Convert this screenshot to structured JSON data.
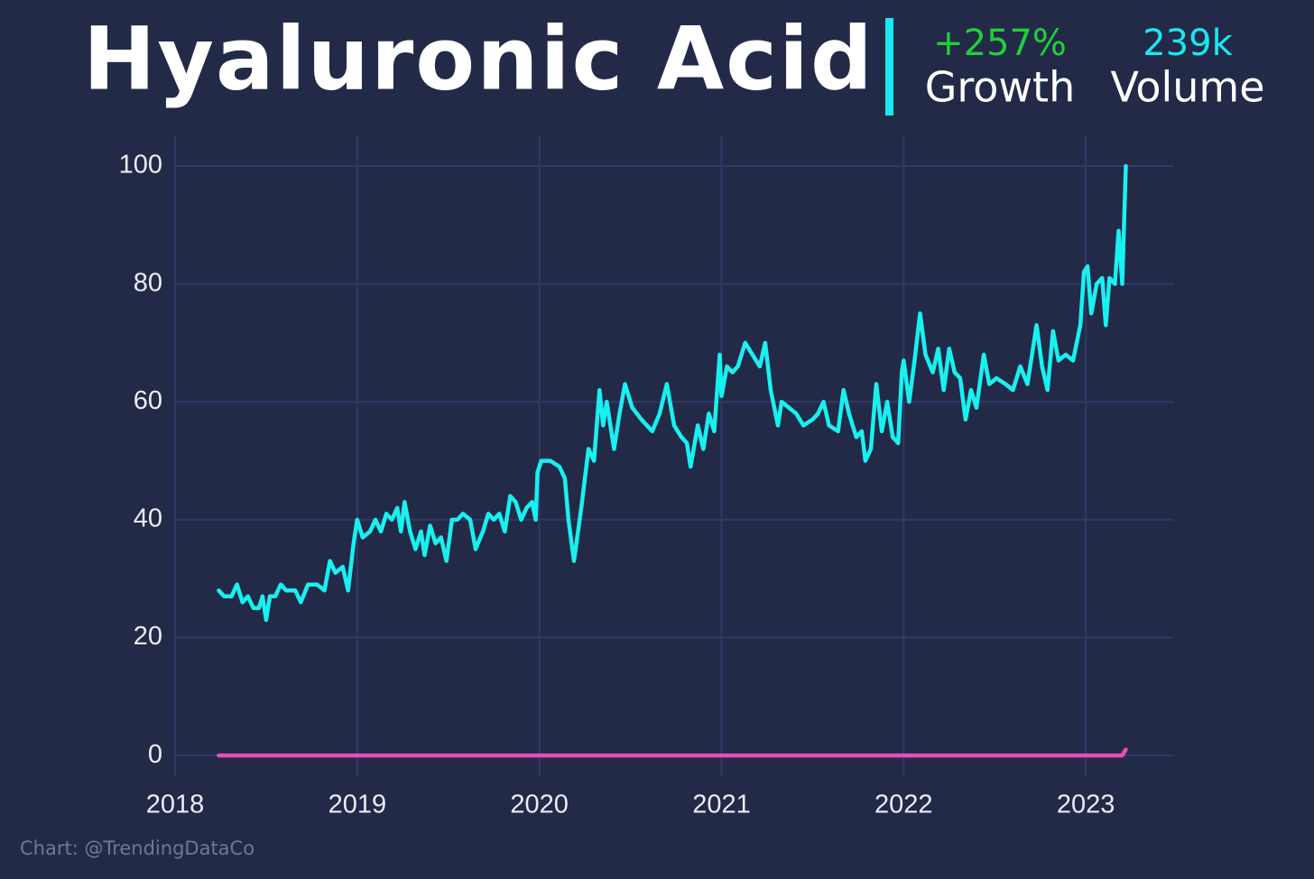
{
  "chart_data": {
    "type": "line",
    "title": "Hyaluronic Acid",
    "stats": [
      {
        "value": "+257%",
        "label": "Growth",
        "color": "#1fcf3a"
      },
      {
        "value": "239k",
        "label": "Volume",
        "color": "#19e8f0"
      }
    ],
    "source": "Chart: @TrendingDataCo",
    "xlim": [
      2017.995,
      2023.48
    ],
    "xticks": [
      2018,
      2019,
      2020,
      2021,
      2022,
      2023
    ],
    "ylim": [
      -3.5,
      105.2
    ],
    "yticks": [
      0,
      20,
      40,
      60,
      80,
      100
    ],
    "grid": true,
    "series": [
      {
        "color": "#19f0f0",
        "x": [
          2018.24,
          2018.27,
          2018.31,
          2018.34,
          2018.37,
          2018.4,
          2018.43,
          2018.46,
          2018.48,
          2018.5,
          2018.52,
          2018.55,
          2018.58,
          2018.61,
          2018.66,
          2018.69,
          2018.73,
          2018.78,
          2018.82,
          2018.85,
          2018.88,
          2018.92,
          2018.95,
          2018.98,
          2019.0,
          2019.03,
          2019.07,
          2019.1,
          2019.13,
          2019.16,
          2019.19,
          2019.22,
          2019.24,
          2019.26,
          2019.29,
          2019.32,
          2019.35,
          2019.37,
          2019.4,
          2019.43,
          2019.46,
          2019.49,
          2019.52,
          2019.55,
          2019.58,
          2019.62,
          2019.65,
          2019.69,
          2019.72,
          2019.75,
          2019.78,
          2019.81,
          2019.84,
          2019.87,
          2019.9,
          2019.93,
          2019.96,
          2019.98,
          2019.99,
          2020.01,
          2020.06,
          2020.11,
          2020.14,
          2020.16,
          2020.19,
          2020.23,
          2020.27,
          2020.3,
          2020.33,
          2020.35,
          2020.37,
          2020.41,
          2020.44,
          2020.47,
          2020.51,
          2020.56,
          2020.62,
          2020.66,
          2020.7,
          2020.74,
          2020.78,
          2020.81,
          2020.83,
          2020.87,
          2020.9,
          2020.93,
          2020.96,
          2020.99,
          2021.0,
          2021.03,
          2021.06,
          2021.09,
          2021.13,
          2021.17,
          2021.21,
          2021.24,
          2021.27,
          2021.31,
          2021.33,
          2021.37,
          2021.41,
          2021.45,
          2021.5,
          2021.53,
          2021.56,
          2021.59,
          2021.64,
          2021.67,
          2021.7,
          2021.74,
          2021.77,
          2021.79,
          2021.82,
          2021.85,
          2021.88,
          2021.91,
          2021.94,
          2021.97,
          2021.99,
          2022.0,
          2022.03,
          2022.06,
          2022.09,
          2022.12,
          2022.16,
          2022.19,
          2022.22,
          2022.25,
          2022.28,
          2022.31,
          2022.34,
          2022.37,
          2022.4,
          2022.44,
          2022.47,
          2022.51,
          2022.56,
          2022.6,
          2022.64,
          2022.68,
          2022.73,
          2022.76,
          2022.79,
          2022.82,
          2022.85,
          2022.89,
          2022.93,
          2022.97,
          2022.99,
          2023.01,
          2023.03,
          2023.06,
          2023.09,
          2023.11,
          2023.13,
          2023.16,
          2023.18,
          2023.2,
          2023.22
        ],
        "values": [
          28,
          27,
          27,
          29,
          26,
          27,
          25,
          25,
          27,
          23,
          27,
          27,
          29,
          28,
          28,
          26,
          29,
          29,
          28,
          33,
          31,
          32,
          28,
          36,
          40,
          37,
          38,
          40,
          38,
          41,
          40,
          42,
          38,
          43,
          38,
          35,
          38,
          34,
          39,
          36,
          37,
          33,
          40,
          40,
          41,
          40,
          35,
          38,
          41,
          40,
          41,
          38,
          44,
          43,
          40,
          42,
          43,
          40,
          48,
          50,
          50,
          49,
          47,
          40,
          33,
          42,
          52,
          50,
          62,
          56,
          60,
          52,
          58,
          63,
          59,
          57,
          55,
          58,
          63,
          56,
          54,
          53,
          49,
          56,
          52,
          58,
          55,
          68,
          61,
          66,
          65,
          66,
          70,
          68,
          66,
          70,
          62,
          56,
          60,
          59,
          58,
          56,
          57,
          58,
          60,
          56,
          55,
          62,
          58,
          54,
          55,
          50,
          52,
          63,
          55,
          60,
          54,
          53,
          65,
          67,
          60,
          67,
          75,
          68,
          65,
          69,
          62,
          69,
          65,
          64,
          57,
          62,
          59,
          68,
          63,
          64,
          63,
          62,
          66,
          63,
          73,
          66,
          62,
          72,
          67,
          68,
          67,
          73,
          82,
          83,
          75,
          80,
          81,
          73,
          81,
          80,
          89,
          80,
          100
        ]
      },
      {
        "color": "#e84fb5",
        "x": [
          2018.24,
          2023.2,
          2023.22
        ],
        "values": [
          0,
          0,
          1
        ]
      }
    ]
  }
}
